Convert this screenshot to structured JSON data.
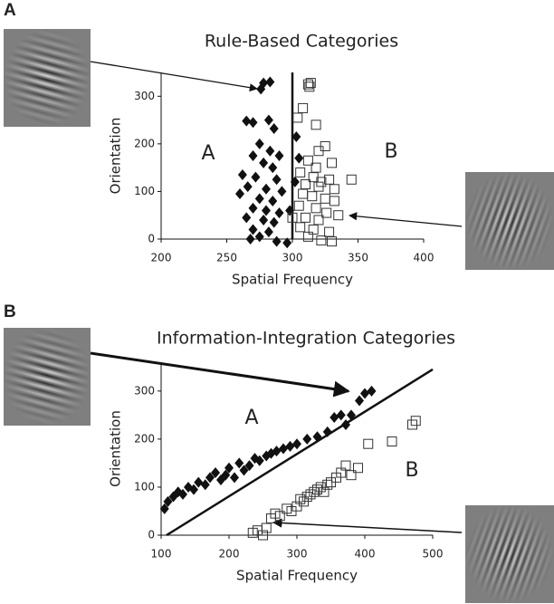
{
  "chart_data": [
    {
      "type": "scatter",
      "panel_label": "A",
      "title": "Rule-Based Categories",
      "x_label": "Spatial Frequency",
      "y_label": "Orientation",
      "xlim": [
        200,
        400
      ],
      "ylim": [
        0,
        350
      ],
      "xticks": [
        200,
        250,
        300,
        350,
        400
      ],
      "yticks": [
        0,
        100,
        200,
        300
      ],
      "boundary": {
        "x": [
          300,
          300
        ],
        "y": [
          0,
          350
        ]
      },
      "series": [
        {
          "name": "A",
          "marker": "diamond",
          "color": "#111111",
          "x": [
            278,
            283,
            276,
            265,
            270,
            282,
            286,
            275,
            283,
            290,
            270,
            278,
            285,
            262,
            272,
            288,
            266,
            280,
            292,
            260,
            275,
            285,
            270,
            280,
            290,
            265,
            278,
            286,
            270,
            282,
            275,
            268,
            288,
            296,
            303,
            305,
            302,
            298
          ],
          "y": [
            328,
            330,
            315,
            248,
            245,
            250,
            232,
            200,
            185,
            175,
            175,
            160,
            150,
            135,
            130,
            125,
            110,
            105,
            100,
            95,
            85,
            80,
            65,
            60,
            55,
            45,
            40,
            35,
            20,
            15,
            5,
            0,
            -5,
            -8,
            215,
            170,
            120,
            60
          ]
        },
        {
          "name": "B",
          "marker": "square",
          "color": "#333333",
          "x": [
            312,
            314,
            313,
            308,
            304,
            318,
            320,
            325,
            312,
            318,
            330,
            306,
            316,
            322,
            328,
            310,
            320,
            332,
            345,
            308,
            315,
            325,
            332,
            305,
            318,
            326,
            310,
            320,
            335,
            306,
            316,
            328,
            312,
            322,
            330,
            300
          ],
          "y": [
            325,
            328,
            320,
            275,
            255,
            240,
            185,
            195,
            165,
            150,
            160,
            140,
            130,
            120,
            125,
            115,
            110,
            105,
            125,
            95,
            90,
            85,
            80,
            70,
            65,
            55,
            45,
            40,
            50,
            25,
            20,
            15,
            5,
            -3,
            -5,
            45
          ]
        }
      ]
    },
    {
      "type": "scatter",
      "panel_label": "B",
      "title": "Information-Integration Categories",
      "x_label": "Spatial Frequency",
      "y_label": "Orientation",
      "xlim": [
        100,
        500
      ],
      "ylim": [
        0,
        360
      ],
      "xticks": [
        100,
        200,
        300,
        400,
        500
      ],
      "yticks": [
        0,
        100,
        200,
        300
      ],
      "boundary": {
        "x": [
          108,
          500
        ],
        "y": [
          0,
          345
        ]
      },
      "series": [
        {
          "name": "A",
          "marker": "diamond",
          "color": "#111111",
          "x": [
            105,
            110,
            118,
            125,
            132,
            140,
            148,
            155,
            165,
            172,
            180,
            188,
            195,
            200,
            208,
            215,
            222,
            230,
            238,
            245,
            255,
            262,
            270,
            280,
            290,
            300,
            315,
            330,
            345,
            355,
            365,
            372,
            380,
            392,
            400,
            410
          ],
          "y": [
            55,
            70,
            80,
            90,
            85,
            100,
            95,
            110,
            105,
            120,
            130,
            115,
            125,
            140,
            120,
            150,
            135,
            145,
            160,
            155,
            165,
            170,
            175,
            180,
            185,
            190,
            200,
            205,
            215,
            245,
            250,
            230,
            250,
            280,
            295,
            300
          ]
        },
        {
          "name": "B",
          "marker": "square",
          "color": "#333333",
          "x": [
            235,
            242,
            250,
            255,
            262,
            268,
            275,
            285,
            292,
            300,
            305,
            310,
            315,
            320,
            325,
            330,
            335,
            340,
            345,
            350,
            358,
            365,
            372,
            380,
            390,
            405,
            440,
            470,
            475
          ],
          "y": [
            5,
            10,
            0,
            15,
            35,
            45,
            40,
            55,
            50,
            60,
            75,
            70,
            80,
            85,
            90,
            95,
            100,
            90,
            105,
            110,
            120,
            130,
            145,
            125,
            140,
            190,
            195,
            230,
            238
          ]
        }
      ]
    }
  ]
}
